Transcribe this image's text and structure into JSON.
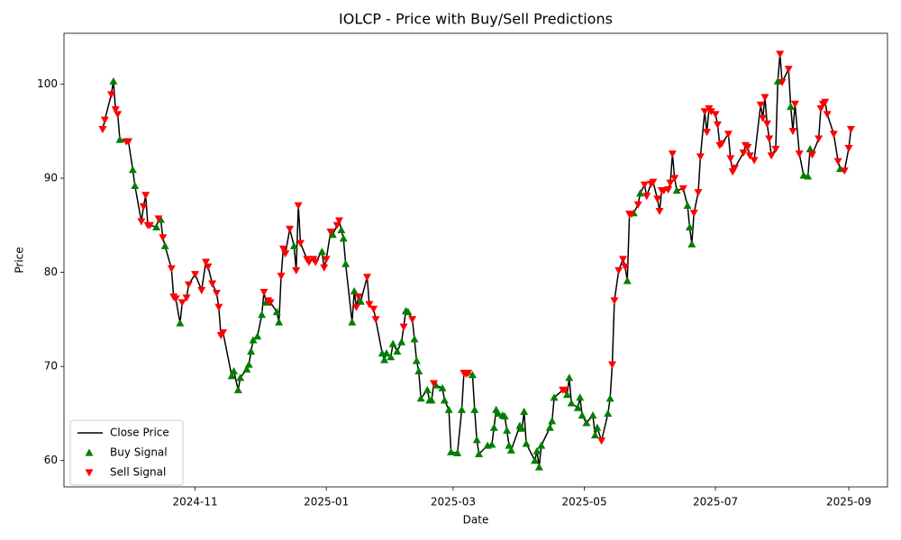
{
  "chart_data": {
    "type": "line",
    "title": "IOLCP - Price with Buy/Sell Predictions",
    "xlabel": "Date",
    "ylabel": "Price",
    "xlim": [
      "2024-09-01",
      "2025-09-19"
    ],
    "xticks": [
      {
        "value": "2024-11-01",
        "label": "2024-11"
      },
      {
        "value": "2025-01-01",
        "label": "2025-01"
      },
      {
        "value": "2025-03-01",
        "label": "2025-03"
      },
      {
        "value": "2025-05-01",
        "label": "2025-05"
      },
      {
        "value": "2025-07-01",
        "label": "2025-07"
      },
      {
        "value": "2025-09-01",
        "label": "2025-09"
      }
    ],
    "ylim": [
      57.2,
      105.4
    ],
    "yticks": [
      60,
      70,
      80,
      90,
      100
    ],
    "grid": false,
    "legend": "lower left",
    "series": [
      {
        "name": "Close Price",
        "type": "line",
        "color": "#000000",
        "x": [
          "2024-09-19",
          "2024-09-20",
          "2024-09-23",
          "2024-09-24",
          "2024-09-25",
          "2024-09-26",
          "2024-09-27",
          "2024-09-30",
          "2024-10-01",
          "2024-10-03",
          "2024-10-04",
          "2024-10-07",
          "2024-10-08",
          "2024-10-09",
          "2024-10-10",
          "2024-10-11",
          "2024-10-14",
          "2024-10-15",
          "2024-10-16",
          "2024-10-17",
          "2024-10-18",
          "2024-10-21",
          "2024-10-22",
          "2024-10-23",
          "2024-10-25",
          "2024-10-26",
          "2024-10-28",
          "2024-10-29",
          "2024-11-01",
          "2024-11-04",
          "2024-11-06",
          "2024-11-07",
          "2024-11-09",
          "2024-11-11",
          "2024-11-12",
          "2024-11-13",
          "2024-11-14",
          "2024-11-18",
          "2024-11-19",
          "2024-11-21",
          "2024-11-22",
          "2024-11-25",
          "2024-11-26",
          "2024-11-27",
          "2024-11-28",
          "2024-11-30",
          "2024-12-02",
          "2024-12-03",
          "2024-12-04",
          "2024-12-05",
          "2024-12-06",
          "2024-12-09",
          "2024-12-10",
          "2024-12-11",
          "2024-12-12",
          "2024-12-13",
          "2024-12-15",
          "2024-12-17",
          "2024-12-18",
          "2024-12-19",
          "2024-12-20",
          "2024-12-23",
          "2024-12-24",
          "2024-12-26",
          "2024-12-27",
          "2024-12-30",
          "2024-12-31",
          "2025-01-01",
          "2025-01-03",
          "2025-01-04",
          "2025-01-06",
          "2025-01-07",
          "2025-01-08",
          "2025-01-09",
          "2025-01-10",
          "2025-01-13",
          "2025-01-14",
          "2025-01-15",
          "2025-01-16",
          "2025-01-17",
          "2025-01-20",
          "2025-01-21",
          "2025-01-23",
          "2025-01-24",
          "2025-01-27",
          "2025-01-28",
          "2025-01-29",
          "2025-01-31",
          "2025-02-01",
          "2025-02-03",
          "2025-02-05",
          "2025-02-06",
          "2025-02-07",
          "2025-02-08",
          "2025-02-10",
          "2025-02-11",
          "2025-02-12",
          "2025-02-13",
          "2025-02-14",
          "2025-02-17",
          "2025-02-18",
          "2025-02-19",
          "2025-02-20",
          "2025-02-21",
          "2025-02-24",
          "2025-02-25",
          "2025-02-27",
          "2025-02-28",
          "2025-03-03",
          "2025-03-05",
          "2025-03-06",
          "2025-03-07",
          "2025-03-08",
          "2025-03-10",
          "2025-03-11",
          "2025-03-12",
          "2025-03-13",
          "2025-03-17",
          "2025-03-19",
          "2025-03-20",
          "2025-03-21",
          "2025-03-22",
          "2025-03-24",
          "2025-03-25",
          "2025-03-26",
          "2025-03-27",
          "2025-03-28",
          "2025-04-01",
          "2025-04-02",
          "2025-04-03",
          "2025-04-04",
          "2025-04-08",
          "2025-04-09",
          "2025-04-10",
          "2025-04-11",
          "2025-04-15",
          "2025-04-16",
          "2025-04-17",
          "2025-04-21",
          "2025-04-22",
          "2025-04-23",
          "2025-04-24",
          "2025-04-25",
          "2025-04-28",
          "2025-04-29",
          "2025-04-30",
          "2025-05-02",
          "2025-05-05",
          "2025-05-06",
          "2025-05-07",
          "2025-05-09",
          "2025-05-12",
          "2025-05-13",
          "2025-05-14",
          "2025-05-15",
          "2025-05-17",
          "2025-05-19",
          "2025-05-20",
          "2025-05-21",
          "2025-05-22",
          "2025-05-23",
          "2025-05-24",
          "2025-05-26",
          "2025-05-27",
          "2025-05-29",
          "2025-05-30",
          "2025-06-01",
          "2025-06-02",
          "2025-06-04",
          "2025-06-05",
          "2025-06-06",
          "2025-06-07",
          "2025-06-09",
          "2025-06-10",
          "2025-06-11",
          "2025-06-12",
          "2025-06-13",
          "2025-06-16",
          "2025-06-18",
          "2025-06-19",
          "2025-06-20",
          "2025-06-21",
          "2025-06-23",
          "2025-06-24",
          "2025-06-26",
          "2025-06-27",
          "2025-06-28",
          "2025-06-29",
          "2025-07-01",
          "2025-07-02",
          "2025-07-03",
          "2025-07-04",
          "2025-07-07",
          "2025-07-08",
          "2025-07-09",
          "2025-07-10",
          "2025-07-14",
          "2025-07-15",
          "2025-07-16",
          "2025-07-17",
          "2025-07-19",
          "2025-07-22",
          "2025-07-23",
          "2025-07-24",
          "2025-07-25",
          "2025-07-26",
          "2025-07-27",
          "2025-07-29",
          "2025-07-30",
          "2025-07-31",
          "2025-08-01",
          "2025-08-04",
          "2025-08-05",
          "2025-08-06",
          "2025-08-07",
          "2025-08-09",
          "2025-08-11",
          "2025-08-13",
          "2025-08-14",
          "2025-08-15",
          "2025-08-18",
          "2025-08-19",
          "2025-08-20",
          "2025-08-21",
          "2025-08-22",
          "2025-08-25",
          "2025-08-27",
          "2025-08-28",
          "2025-08-30",
          "2025-09-01",
          "2025-09-02"
        ],
        "values": [
          95.2,
          96.2,
          98.9,
          100.3,
          97.3,
          96.8,
          94.1,
          93.9,
          93.9,
          90.9,
          89.2,
          85.4,
          87.0,
          88.2,
          85.0,
          85.0,
          84.8,
          85.7,
          85.6,
          83.7,
          82.8,
          80.4,
          77.4,
          77.2,
          74.6,
          76.8,
          77.3,
          78.7,
          79.8,
          78.1,
          81.1,
          80.6,
          78.8,
          77.8,
          76.3,
          73.3,
          73.6,
          69.0,
          69.5,
          67.5,
          68.8,
          69.7,
          70.2,
          71.6,
          72.8,
          73.2,
          75.5,
          77.9,
          76.8,
          77.0,
          76.8,
          75.8,
          74.7,
          79.6,
          82.5,
          82.0,
          84.6,
          82.8,
          80.2,
          87.1,
          83.1,
          81.4,
          81.1,
          81.4,
          81.1,
          82.2,
          80.5,
          81.4,
          84.3,
          84.0,
          85.0,
          85.5,
          84.5,
          83.6,
          80.9,
          74.7,
          78.0,
          76.3,
          77.4,
          76.9,
          79.5,
          76.6,
          76.1,
          75.0,
          71.4,
          70.7,
          71.4,
          71.0,
          72.4,
          71.6,
          72.6,
          74.2,
          75.9,
          75.8,
          75.0,
          72.9,
          70.6,
          69.5,
          66.6,
          67.5,
          66.4,
          66.4,
          68.2,
          68.0,
          67.7,
          66.4,
          65.4,
          60.9,
          60.8,
          65.4,
          69.3,
          69.2,
          69.3,
          69.1,
          65.4,
          62.2,
          60.7,
          61.6,
          61.7,
          63.5,
          65.4,
          65.0,
          64.8,
          64.7,
          63.2,
          61.6,
          61.1,
          63.7,
          63.4,
          65.2,
          61.8,
          60.0,
          61.0,
          59.3,
          61.6,
          63.5,
          64.2,
          66.7,
          67.5,
          67.5,
          67.0,
          68.8,
          66.1,
          65.6,
          66.7,
          64.8,
          64.0,
          64.8,
          62.7,
          63.5,
          62.1,
          65.0,
          66.6,
          70.2,
          77.0,
          80.2,
          81.4,
          80.6,
          79.1,
          86.2,
          86.2,
          86.3,
          87.2,
          88.4,
          89.3,
          88.1,
          89.4,
          89.6,
          87.8,
          86.5,
          88.7,
          88.7,
          88.8,
          89.5,
          92.6,
          90.0,
          88.7,
          88.9,
          87.1,
          84.8,
          83.0,
          86.3,
          88.5,
          92.3,
          97.1,
          94.9,
          97.4,
          97.1,
          96.8,
          95.7,
          93.5,
          93.7,
          94.7,
          92.1,
          90.7,
          91.1,
          92.7,
          93.5,
          93.3,
          92.4,
          91.9,
          97.8,
          96.4,
          98.6,
          95.8,
          94.2,
          92.4,
          93.1,
          100.3,
          103.2,
          100.2,
          101.6,
          97.6,
          95.0,
          97.9,
          92.6,
          90.3,
          90.2,
          93.1,
          92.5,
          94.2,
          97.4,
          97.9,
          98.1,
          96.8,
          94.7,
          91.8,
          91.0,
          90.8,
          93.2,
          95.2
        ]
      },
      {
        "name": "Buy Signal",
        "type": "scatter",
        "marker": "^",
        "color": "#008000",
        "x": [
          "2024-09-24",
          "2024-09-27",
          "2024-10-03",
          "2024-10-04",
          "2024-10-14",
          "2024-10-16",
          "2024-10-18",
          "2024-10-25",
          "2024-11-18",
          "2024-11-19",
          "2024-11-21",
          "2024-11-22",
          "2024-11-25",
          "2024-11-26",
          "2024-11-27",
          "2024-11-28",
          "2024-11-30",
          "2024-12-02",
          "2024-12-04",
          "2024-12-09",
          "2024-12-10",
          "2024-12-17",
          "2024-12-30",
          "2025-01-04",
          "2025-01-08",
          "2025-01-09",
          "2025-01-10",
          "2025-01-13",
          "2025-01-14",
          "2025-01-17",
          "2025-01-27",
          "2025-01-28",
          "2025-01-29",
          "2025-01-31",
          "2025-02-01",
          "2025-02-03",
          "2025-02-05",
          "2025-02-07",
          "2025-02-08",
          "2025-02-11",
          "2025-02-12",
          "2025-02-13",
          "2025-02-14",
          "2025-02-17",
          "2025-02-18",
          "2025-02-19",
          "2025-02-21",
          "2025-02-24",
          "2025-02-25",
          "2025-02-27",
          "2025-02-28",
          "2025-03-03",
          "2025-03-05",
          "2025-03-10",
          "2025-03-11",
          "2025-03-12",
          "2025-03-13",
          "2025-03-17",
          "2025-03-19",
          "2025-03-20",
          "2025-03-21",
          "2025-03-22",
          "2025-03-24",
          "2025-03-25",
          "2025-03-26",
          "2025-03-27",
          "2025-03-28",
          "2025-04-01",
          "2025-04-02",
          "2025-04-03",
          "2025-04-04",
          "2025-04-08",
          "2025-04-09",
          "2025-04-10",
          "2025-04-11",
          "2025-04-15",
          "2025-04-16",
          "2025-04-17",
          "2025-04-23",
          "2025-04-24",
          "2025-04-25",
          "2025-04-28",
          "2025-04-29",
          "2025-04-30",
          "2025-05-02",
          "2025-05-05",
          "2025-05-06",
          "2025-05-07",
          "2025-05-12",
          "2025-05-13",
          "2025-05-21",
          "2025-05-24",
          "2025-05-27",
          "2025-06-13",
          "2025-06-18",
          "2025-06-19",
          "2025-06-20",
          "2025-07-30",
          "2025-08-05",
          "2025-08-11",
          "2025-08-13",
          "2025-08-14",
          "2025-08-28"
        ],
        "values": [
          100.3,
          94.1,
          90.9,
          89.2,
          84.8,
          85.6,
          82.8,
          74.6,
          69.0,
          69.5,
          67.5,
          68.8,
          69.7,
          70.2,
          71.6,
          72.8,
          73.2,
          75.5,
          76.8,
          75.8,
          74.7,
          82.8,
          82.2,
          84.0,
          84.5,
          83.6,
          80.9,
          74.7,
          78.0,
          76.9,
          71.4,
          70.7,
          71.4,
          71.0,
          72.4,
          71.6,
          72.6,
          75.9,
          75.8,
          72.9,
          70.6,
          69.5,
          66.6,
          67.5,
          66.4,
          66.4,
          68.0,
          67.7,
          66.4,
          65.4,
          60.9,
          60.8,
          65.4,
          69.1,
          65.4,
          62.2,
          60.7,
          61.6,
          61.7,
          63.5,
          65.4,
          65.0,
          64.8,
          64.7,
          63.2,
          61.6,
          61.1,
          63.7,
          63.4,
          65.2,
          61.8,
          60.0,
          61.0,
          59.3,
          61.6,
          63.5,
          64.2,
          66.7,
          67.0,
          68.8,
          66.1,
          65.6,
          66.7,
          64.8,
          64.0,
          64.8,
          62.7,
          63.5,
          65.0,
          66.6,
          79.1,
          86.3,
          88.4,
          88.7,
          87.1,
          84.8,
          83.0,
          100.3,
          97.6,
          90.3,
          90.2,
          93.1,
          91.0
        ]
      },
      {
        "name": "Sell Signal",
        "type": "scatter",
        "marker": "v",
        "color": "#ff0000",
        "x": [
          "2024-09-19",
          "2024-09-20",
          "2024-09-23",
          "2024-09-25",
          "2024-09-26",
          "2024-09-30",
          "2024-10-01",
          "2024-10-07",
          "2024-10-08",
          "2024-10-09",
          "2024-10-10",
          "2024-10-11",
          "2024-10-15",
          "2024-10-17",
          "2024-10-21",
          "2024-10-22",
          "2024-10-23",
          "2024-10-26",
          "2024-10-28",
          "2024-10-29",
          "2024-11-01",
          "2024-11-04",
          "2024-11-06",
          "2024-11-07",
          "2024-11-09",
          "2024-11-11",
          "2024-11-12",
          "2024-11-13",
          "2024-11-14",
          "2024-12-03",
          "2024-12-05",
          "2024-12-06",
          "2024-12-11",
          "2024-12-12",
          "2024-12-13",
          "2024-12-15",
          "2024-12-18",
          "2024-12-19",
          "2024-12-20",
          "2024-12-23",
          "2024-12-24",
          "2024-12-26",
          "2024-12-27",
          "2024-12-31",
          "2025-01-01",
          "2025-01-03",
          "2025-01-06",
          "2025-01-07",
          "2025-01-15",
          "2025-01-16",
          "2025-01-20",
          "2025-01-21",
          "2025-01-23",
          "2025-01-24",
          "2025-02-06",
          "2025-02-10",
          "2025-02-20",
          "2025-03-06",
          "2025-03-07",
          "2025-03-08",
          "2025-04-21",
          "2025-04-22",
          "2025-05-09",
          "2025-05-14",
          "2025-05-15",
          "2025-05-17",
          "2025-05-19",
          "2025-05-20",
          "2025-05-22",
          "2025-05-23",
          "2025-05-26",
          "2025-05-29",
          "2025-05-30",
          "2025-06-01",
          "2025-06-02",
          "2025-06-04",
          "2025-06-05",
          "2025-06-06",
          "2025-06-07",
          "2025-06-09",
          "2025-06-10",
          "2025-06-11",
          "2025-06-12",
          "2025-06-16",
          "2025-06-21",
          "2025-06-23",
          "2025-06-24",
          "2025-06-26",
          "2025-06-27",
          "2025-06-28",
          "2025-06-29",
          "2025-07-01",
          "2025-07-02",
          "2025-07-03",
          "2025-07-04",
          "2025-07-07",
          "2025-07-08",
          "2025-07-09",
          "2025-07-10",
          "2025-07-14",
          "2025-07-15",
          "2025-07-16",
          "2025-07-17",
          "2025-07-19",
          "2025-07-22",
          "2025-07-23",
          "2025-07-24",
          "2025-07-25",
          "2025-07-26",
          "2025-07-27",
          "2025-07-29",
          "2025-07-31",
          "2025-08-01",
          "2025-08-04",
          "2025-08-06",
          "2025-08-07",
          "2025-08-09",
          "2025-08-15",
          "2025-08-18",
          "2025-08-19",
          "2025-08-20",
          "2025-08-21",
          "2025-08-22",
          "2025-08-25",
          "2025-08-27",
          "2025-08-30",
          "2025-09-01",
          "2025-09-02"
        ],
        "values": [
          95.2,
          96.2,
          98.9,
          97.3,
          96.8,
          93.9,
          93.9,
          85.4,
          87.0,
          88.2,
          85.0,
          85.0,
          85.7,
          83.7,
          80.4,
          77.4,
          77.2,
          76.8,
          77.3,
          78.7,
          79.8,
          78.1,
          81.1,
          80.6,
          78.8,
          77.8,
          76.3,
          73.3,
          73.6,
          77.9,
          77.0,
          76.8,
          79.6,
          82.5,
          82.0,
          84.6,
          80.2,
          87.1,
          83.1,
          81.4,
          81.1,
          81.4,
          81.1,
          80.5,
          81.4,
          84.3,
          85.0,
          85.5,
          76.3,
          77.4,
          79.5,
          76.6,
          76.1,
          75.0,
          74.2,
          75.0,
          68.2,
          69.3,
          69.2,
          69.3,
          67.5,
          67.5,
          62.1,
          70.2,
          77.0,
          80.2,
          81.4,
          80.6,
          86.2,
          86.2,
          87.2,
          89.3,
          88.1,
          89.4,
          89.6,
          87.8,
          86.5,
          88.7,
          88.7,
          88.8,
          89.5,
          92.6,
          90.0,
          88.9,
          86.3,
          88.5,
          92.3,
          97.1,
          94.9,
          97.4,
          97.1,
          96.8,
          95.7,
          93.5,
          93.7,
          94.7,
          92.1,
          90.7,
          91.1,
          92.7,
          93.5,
          93.3,
          92.4,
          91.9,
          97.8,
          96.4,
          98.6,
          95.8,
          94.2,
          92.4,
          93.1,
          103.2,
          100.2,
          101.6,
          95.0,
          97.9,
          92.6,
          92.5,
          94.2,
          97.4,
          97.9,
          98.1,
          96.8,
          94.7,
          91.8,
          90.8,
          93.2,
          95.2
        ]
      }
    ]
  }
}
